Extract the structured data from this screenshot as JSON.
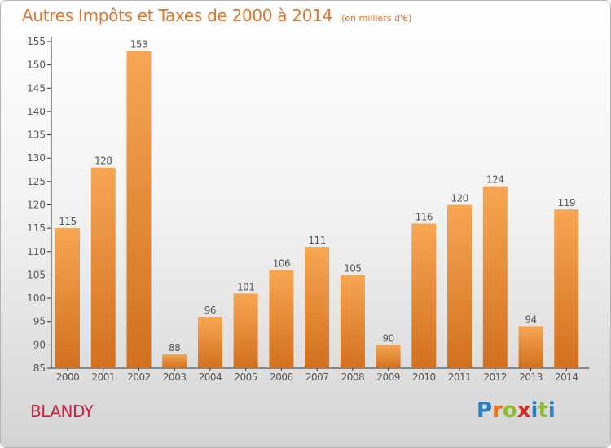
{
  "header": {
    "title": "Autres Impôts et Taxes de 2000 à 2014",
    "unit": "(en milliers d'€)"
  },
  "footer": {
    "town": "BLANDY",
    "logo": {
      "letters": [
        "P",
        "r",
        "o",
        "x",
        "i",
        "t",
        "i"
      ],
      "colors": [
        "#2b7fc1",
        "#e8731a",
        "#8bbd2a",
        "#d02a2a",
        "#2b7fc1",
        "#8bbd2a",
        "#2b7fc1"
      ]
    }
  },
  "colors": {
    "bar_light": "#f7a652",
    "bar_dark": "#d2701f",
    "text": "#555555"
  },
  "chart_data": {
    "type": "bar",
    "title": "Autres Impôts et Taxes de 2000 à 2014",
    "ylabel": "",
    "xlabel": "",
    "categories": [
      "2000",
      "2001",
      "2002",
      "2003",
      "2004",
      "2005",
      "2006",
      "2007",
      "2008",
      "2009",
      "2010",
      "2011",
      "2012",
      "2013",
      "2014"
    ],
    "values": [
      115,
      128,
      153,
      88,
      96,
      101,
      106,
      111,
      105,
      90,
      116,
      120,
      124,
      94,
      119
    ],
    "ylim": [
      85,
      155
    ],
    "yticks": [
      85,
      90,
      95,
      100,
      105,
      110,
      115,
      120,
      125,
      130,
      135,
      140,
      145,
      150,
      155
    ],
    "grid": false,
    "legend": "none"
  }
}
